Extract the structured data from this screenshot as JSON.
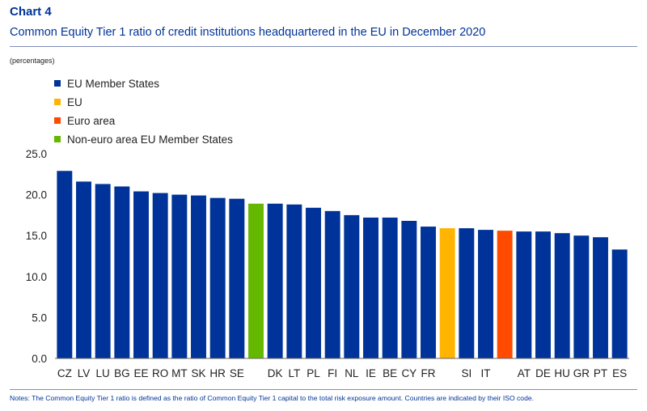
{
  "header": {
    "label": "Chart 4",
    "title": "Common Equity Tier 1 ratio of credit institutions headquartered in the EU in December 2020",
    "unit": "(percentages)"
  },
  "footer": {
    "note": "Notes: The Common Equity Tier 1 ratio is defined as the ratio of Common Equity Tier 1 capital to the total risk exposure amount. Countries are indicated by their ISO code."
  },
  "colors": {
    "member": "#003399",
    "eu": "#ffb400",
    "euro_area": "#ff4b00",
    "non_euro": "#65b800",
    "axis_text": "#222222"
  },
  "chart_data": {
    "type": "bar",
    "ylim": [
      0,
      25
    ],
    "yticks": [
      "0.0",
      "5.0",
      "10.0",
      "15.0",
      "20.0",
      "25.0"
    ],
    "grid": false,
    "legend_position": "top-left",
    "legend": [
      {
        "label": "EU Member States",
        "color": "#003399"
      },
      {
        "label": "EU",
        "color": "#ffb400"
      },
      {
        "label": "Euro area",
        "color": "#ff4b00"
      },
      {
        "label": "Non-euro area EU Member States",
        "color": "#65b800"
      }
    ],
    "bars": [
      {
        "label": "CZ",
        "value": 22.9,
        "color": "#003399"
      },
      {
        "label": "LV",
        "value": 21.6,
        "color": "#003399"
      },
      {
        "label": "LU",
        "value": 21.3,
        "color": "#003399"
      },
      {
        "label": "BG",
        "value": 21.0,
        "color": "#003399"
      },
      {
        "label": "EE",
        "value": 20.4,
        "color": "#003399"
      },
      {
        "label": "RO",
        "value": 20.2,
        "color": "#003399"
      },
      {
        "label": "MT",
        "value": 20.0,
        "color": "#003399"
      },
      {
        "label": "SK",
        "value": 19.9,
        "color": "#003399"
      },
      {
        "label": "HR",
        "value": 19.6,
        "color": "#003399"
      },
      {
        "label": "SE",
        "value": 19.5,
        "color": "#003399"
      },
      {
        "label": "",
        "value": 18.9,
        "color": "#65b800"
      },
      {
        "label": "DK",
        "value": 18.9,
        "color": "#003399"
      },
      {
        "label": "LT",
        "value": 18.8,
        "color": "#003399"
      },
      {
        "label": "PL",
        "value": 18.4,
        "color": "#003399"
      },
      {
        "label": "FI",
        "value": 18.0,
        "color": "#003399"
      },
      {
        "label": "NL",
        "value": 17.5,
        "color": "#003399"
      },
      {
        "label": "IE",
        "value": 17.2,
        "color": "#003399"
      },
      {
        "label": "BE",
        "value": 17.2,
        "color": "#003399"
      },
      {
        "label": "CY",
        "value": 16.8,
        "color": "#003399"
      },
      {
        "label": "FR",
        "value": 16.1,
        "color": "#003399"
      },
      {
        "label": "",
        "value": 15.9,
        "color": "#ffb400"
      },
      {
        "label": "SI",
        "value": 15.9,
        "color": "#003399"
      },
      {
        "label": "IT",
        "value": 15.7,
        "color": "#003399"
      },
      {
        "label": "",
        "value": 15.6,
        "color": "#ff4b00"
      },
      {
        "label": "AT",
        "value": 15.5,
        "color": "#003399"
      },
      {
        "label": "DE",
        "value": 15.5,
        "color": "#003399"
      },
      {
        "label": "HU",
        "value": 15.3,
        "color": "#003399"
      },
      {
        "label": "GR",
        "value": 15.0,
        "color": "#003399"
      },
      {
        "label": "PT",
        "value": 14.8,
        "color": "#003399"
      },
      {
        "label": "ES",
        "value": 13.3,
        "color": "#003399"
      }
    ]
  }
}
